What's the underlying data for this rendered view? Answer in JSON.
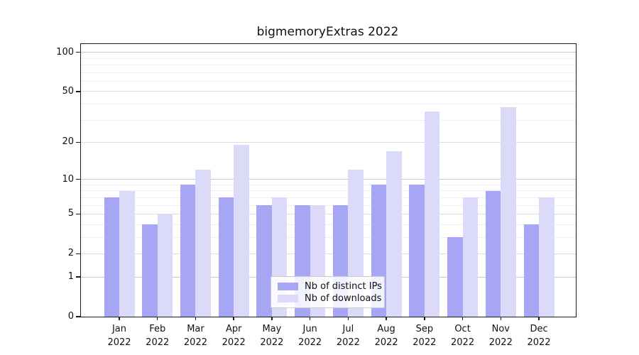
{
  "chart_data": {
    "type": "bar",
    "title": "bigmemoryExtras 2022",
    "year": "2022",
    "months": [
      "Jan",
      "Feb",
      "Mar",
      "Apr",
      "May",
      "Jun",
      "Jul",
      "Aug",
      "Sep",
      "Oct",
      "Nov",
      "Dec"
    ],
    "series": [
      {
        "name": "Nb of distinct IPs",
        "color": "#a6a6f5",
        "values": [
          7,
          4,
          9,
          7,
          6,
          6,
          6,
          9,
          9,
          3,
          8,
          4
        ]
      },
      {
        "name": "Nb of downloads",
        "color": "#dbdbf9",
        "values": [
          8,
          5,
          12,
          19,
          7,
          6,
          12,
          17,
          35,
          7,
          38,
          7
        ]
      }
    ],
    "y_axis": {
      "scale": "log1p",
      "tick_labels": [
        "100",
        "50",
        "20",
        "10",
        "5",
        "2",
        "1",
        "0"
      ],
      "tick_values": [
        100,
        50,
        20,
        10,
        5,
        2,
        1,
        0
      ],
      "top_value": 113
    },
    "x_axis": {
      "label_format": "month over year"
    },
    "grid": {
      "major_values": [
        1,
        10,
        100
      ],
      "mid_values": [
        2,
        5,
        20,
        50
      ],
      "minor_values": [
        3,
        4,
        6,
        7,
        8,
        9,
        30,
        40,
        60,
        70,
        80,
        90
      ],
      "major_color": "#c9c9c9",
      "mid_color": "#dddddd",
      "minor_color": "#efefef"
    },
    "legend": {
      "position": "bottom-center"
    }
  },
  "colors": {
    "spine": "#1a1a1a",
    "text": "#111111"
  }
}
